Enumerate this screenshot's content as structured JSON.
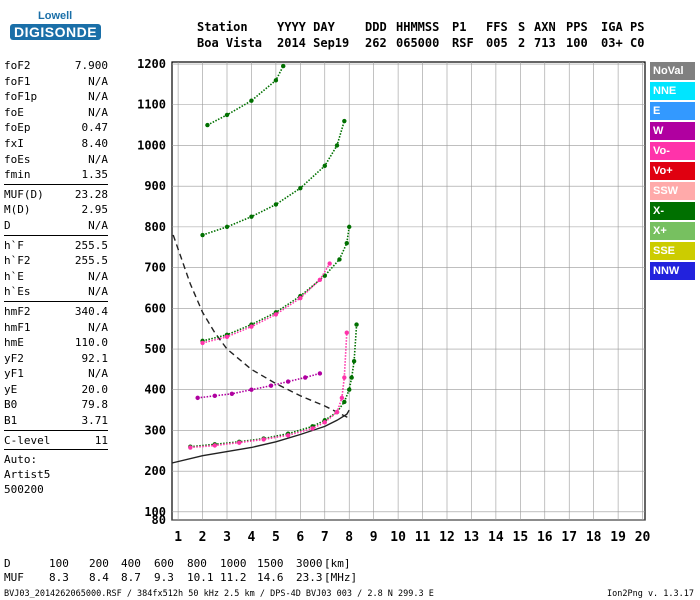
{
  "logo": {
    "line1": "Lowell",
    "line2": "DIGISONDE"
  },
  "header": {
    "row1": [
      {
        "label": "Station"
      },
      {
        "label": "YYYY DAY"
      },
      {
        "label": "DDD"
      },
      {
        "label": "HHMMSS"
      },
      {
        "label": "P1"
      },
      {
        "label": "FFS"
      },
      {
        "label": "S"
      },
      {
        "label": "AXN"
      },
      {
        "label": "PPS"
      },
      {
        "label": "IGA"
      },
      {
        "label": "PS"
      }
    ],
    "row2": [
      {
        "label": "Boa Vista"
      },
      {
        "label": "2014 Sep19"
      },
      {
        "label": "262"
      },
      {
        "label": "065000"
      },
      {
        "label": "RSF"
      },
      {
        "label": "005"
      },
      {
        "label": "2"
      },
      {
        "label": "713"
      },
      {
        "label": "100"
      },
      {
        "label": "03+"
      },
      {
        "label": "C0"
      }
    ]
  },
  "params": {
    "group1": [
      {
        "name": "foF2",
        "value": "7.900"
      },
      {
        "name": "foF1",
        "value": "N/A"
      },
      {
        "name": "foF1p",
        "value": "N/A"
      },
      {
        "name": "foE",
        "value": "N/A"
      },
      {
        "name": "foEp",
        "value": "0.47"
      },
      {
        "name": "fxI",
        "value": "8.40"
      },
      {
        "name": "foEs",
        "value": "N/A"
      },
      {
        "name": "fmin",
        "value": "1.35"
      }
    ],
    "group2": [
      {
        "name": "MUF(D)",
        "value": "23.28"
      },
      {
        "name": "M(D)",
        "value": "2.95"
      },
      {
        "name": "D",
        "value": "N/A"
      }
    ],
    "group3": [
      {
        "name": "h`F",
        "value": "255.5"
      },
      {
        "name": "h`F2",
        "value": "255.5"
      },
      {
        "name": "h`E",
        "value": "N/A"
      },
      {
        "name": "h`Es",
        "value": "N/A"
      }
    ],
    "group4": [
      {
        "name": "hmF2",
        "value": "340.4"
      },
      {
        "name": "hmF1",
        "value": "N/A"
      },
      {
        "name": "hmE",
        "value": "110.0"
      },
      {
        "name": "yF2",
        "value": "92.1"
      },
      {
        "name": "yF1",
        "value": "N/A"
      },
      {
        "name": "yE",
        "value": "20.0"
      },
      {
        "name": "B0",
        "value": "79.8"
      },
      {
        "name": "B1",
        "value": "3.71"
      }
    ],
    "group5": [
      {
        "name": "C-level",
        "value": "11"
      }
    ],
    "extra": [
      "Auto:",
      "Artist5",
      "500200"
    ]
  },
  "legend": [
    {
      "label": "NoVal",
      "color": "#808080"
    },
    {
      "label": "NNE",
      "color": "#00e5ff"
    },
    {
      "label": "E",
      "color": "#3399ff"
    },
    {
      "label": "W",
      "color": "#b000a0"
    },
    {
      "label": "Vo-",
      "color": "#ff33aa"
    },
    {
      "label": "Vo+",
      "color": "#e00010"
    },
    {
      "label": "SSW",
      "color": "#ffaaaa"
    },
    {
      "label": "X-",
      "color": "#007000"
    },
    {
      "label": "X+",
      "color": "#77c060"
    },
    {
      "label": "SSE",
      "color": "#cccc00"
    },
    {
      "label": "NNW",
      "color": "#2222dd"
    }
  ],
  "footer": {
    "d_label": "D",
    "d_values": [
      "100",
      "200",
      "400",
      "600",
      "800",
      "1000",
      "1500",
      "3000"
    ],
    "d_unit": "[km]",
    "muf_label": "MUF",
    "muf_values": [
      "8.3",
      "8.4",
      "8.7",
      "9.3",
      "10.1",
      "11.2",
      "14.6",
      "23.3"
    ],
    "muf_unit": "[MHz]",
    "fileinfo": "BVJ03_2014262065000.RSF / 384fx512h 50 kHz 2.5 km / DPS-4D BVJ03 003 / 2.8 N 299.3 E",
    "version": "Ion2Png v. 1.3.17"
  },
  "chart_data": {
    "type": "scatter",
    "xlim": [
      0.75,
      20.1
    ],
    "ylim": [
      80,
      1205
    ],
    "x_ticks": [
      1,
      2,
      3,
      4,
      5,
      6,
      7,
      8,
      9,
      10,
      11,
      12,
      13,
      14,
      15,
      16,
      17,
      18,
      19,
      20
    ],
    "y_ticks": [
      80,
      100,
      200,
      300,
      400,
      500,
      600,
      700,
      800,
      900,
      1000,
      1100,
      1200
    ],
    "grid": true,
    "legend_position": "right",
    "series": [
      {
        "name": "X-",
        "color": "#007000",
        "x": [
          1.5,
          2.5,
          3.5,
          4.5,
          5.5,
          6.5,
          7.0,
          7.5,
          7.8,
          8.0,
          8.1,
          8.2,
          8.3
        ],
        "y": [
          260,
          266,
          272,
          280,
          292,
          310,
          325,
          345,
          370,
          400,
          430,
          470,
          560
        ]
      },
      {
        "name": "Vo-",
        "color": "#ff33aa",
        "x": [
          1.5,
          2.5,
          3.5,
          4.5,
          5.5,
          6.5,
          7.0,
          7.5,
          7.7,
          7.8,
          7.9
        ],
        "y": [
          258,
          263,
          270,
          278,
          288,
          305,
          320,
          345,
          380,
          430,
          540
        ]
      },
      {
        "name": "W",
        "color": "#b000a0",
        "x": [
          1.8,
          2.5,
          3.2,
          4.0,
          4.8,
          5.5,
          6.2,
          6.8
        ],
        "y": [
          380,
          385,
          390,
          400,
          410,
          420,
          430,
          440
        ]
      },
      {
        "name": "X-",
        "color": "#007000",
        "x": [
          2.0,
          3.0,
          4.0,
          5.0,
          6.0,
          7.0,
          7.6,
          7.9,
          8.0
        ],
        "y": [
          520,
          535,
          560,
          590,
          630,
          680,
          720,
          760,
          800
        ]
      },
      {
        "name": "Vo-",
        "color": "#ff33aa",
        "x": [
          2.0,
          3.0,
          4.0,
          5.0,
          6.0,
          6.8,
          7.2
        ],
        "y": [
          515,
          530,
          555,
          585,
          625,
          670,
          710
        ]
      },
      {
        "name": "X-",
        "color": "#007000",
        "x": [
          2.0,
          3.0,
          4.0,
          5.0,
          6.0,
          7.0,
          7.5,
          7.8
        ],
        "y": [
          780,
          800,
          825,
          855,
          895,
          950,
          1000,
          1060
        ]
      },
      {
        "name": "X-",
        "color": "#007000",
        "x": [
          2.2,
          3.0,
          4.0,
          5.0,
          5.3
        ],
        "y": [
          1050,
          1075,
          1110,
          1160,
          1195
        ]
      }
    ],
    "profile_solid": {
      "x": [
        0.75,
        2,
        3,
        4,
        5,
        6,
        7,
        7.5,
        7.9,
        8.0
      ],
      "y": [
        220,
        238,
        248,
        258,
        272,
        290,
        310,
        325,
        340,
        350
      ]
    },
    "profile_dashed": {
      "x": [
        0.8,
        1.5,
        2,
        2.5,
        3,
        4,
        5,
        6,
        7,
        7.5,
        8.0
      ],
      "y": [
        780,
        660,
        590,
        540,
        500,
        450,
        415,
        385,
        360,
        345,
        330
      ]
    }
  }
}
